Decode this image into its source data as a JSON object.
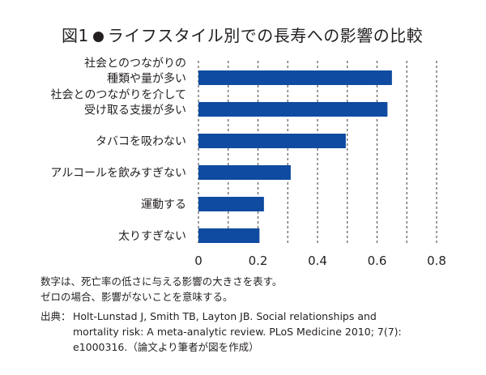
{
  "title": {
    "prefix": "図1",
    "text": "ライフスタイル別での長寿への影響の比較"
  },
  "chart_data": {
    "type": "bar",
    "orientation": "horizontal",
    "title": "図1●ライフスタイル別での長寿への影響の比較",
    "categories": [
      [
        "社会とのつながりの",
        "種類や量が多い"
      ],
      [
        "社会とのつながりを介して",
        "受け取る支援が多い"
      ],
      [
        "タバコを吸わない"
      ],
      [
        "アルコールを飲みすぎない"
      ],
      [
        "運動する"
      ],
      [
        "太りすぎない"
      ]
    ],
    "values": [
      0.65,
      0.635,
      0.495,
      0.31,
      0.22,
      0.205
    ],
    "xlabel": "",
    "ylabel": "",
    "xlim": [
      0,
      0.8
    ],
    "xticks": [
      0,
      0.1,
      0.2,
      0.3,
      0.4,
      0.5,
      0.6,
      0.7,
      0.8
    ],
    "xtick_labels": [
      "0",
      "",
      "0.2",
      "",
      "0.4",
      "",
      "0.6",
      "",
      "0.8"
    ],
    "grid": "vertical dashed",
    "legend": "none",
    "bar_color": "#0f4ba0"
  },
  "notes": [
    "数字は、死亡率の低さに与える影響の大きさを表す。",
    "ゼロの場合、影響がないことを意味する。"
  ],
  "source": {
    "label": "出典：",
    "lines": [
      "Holt-Lunstad J, Smith TB, Layton JB. Social relationships and",
      "mortality risk: A meta-analytic review. PLoS Medicine 2010; 7(7):",
      "e1000316.（論文より筆者が図を作成）"
    ]
  }
}
